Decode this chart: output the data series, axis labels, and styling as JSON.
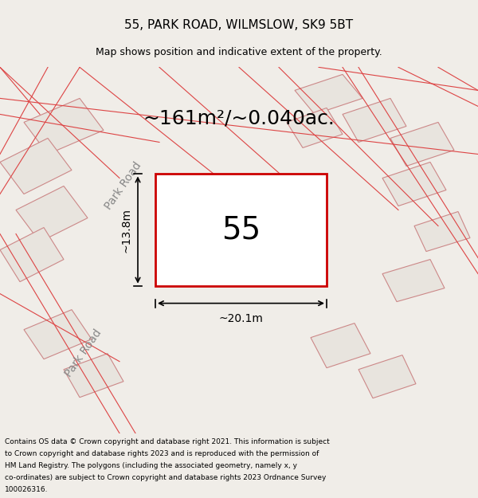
{
  "title": "55, PARK ROAD, WILMSLOW, SK9 5BT",
  "subtitle": "Map shows position and indicative extent of the property.",
  "area_text": "~161m²/~0.040ac.",
  "label_55": "55",
  "dim_width": "~20.1m",
  "dim_height": "~13.8m",
  "road_label": "Park Road",
  "footer": "Contains OS data © Crown copyright and database right 2021. This information is subject to Crown copyright and database rights 2023 and is reproduced with the permission of HM Land Registry. The polygons (including the associated geometry, namely x, y co-ordinates) are subject to Crown copyright and database rights 2023 Ordnance Survey 100026316.",
  "bg_color": "#f0ede8",
  "map_bg": "#f5f2ee",
  "property_fill": "white",
  "property_edge": "#cc0000",
  "road_line_color": "#dd4444",
  "building_fill": "#e8e4de",
  "building_edge": "#cc8888",
  "footer_bg": "white",
  "title_fontsize": 11,
  "subtitle_fontsize": 9,
  "area_fontsize": 18,
  "label_fontsize": 28,
  "dim_fontsize": 10,
  "road_label_fontsize": 10,
  "footer_fontsize": 6.5
}
